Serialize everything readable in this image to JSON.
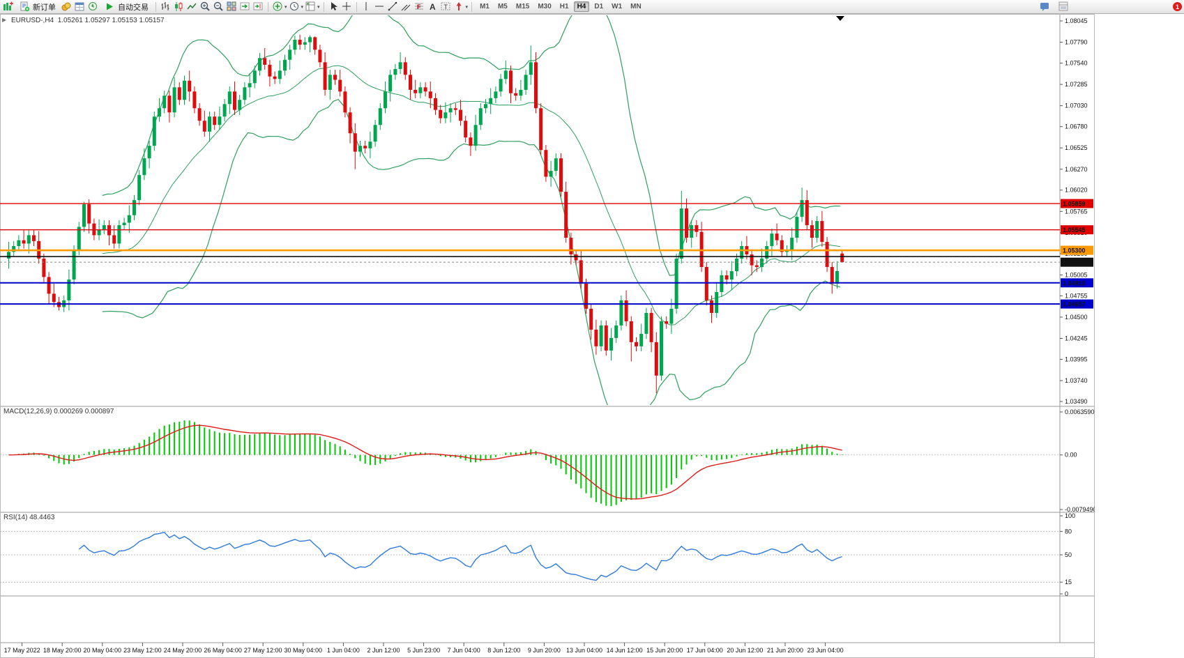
{
  "toolbar": {
    "new_order_label": "新订单",
    "autotrading_label": "自动交易",
    "timeframes": [
      "M1",
      "M5",
      "M15",
      "M30",
      "H1",
      "H4",
      "D1",
      "W1",
      "MN"
    ],
    "active_timeframe": "H4",
    "notification_count": "1"
  },
  "colors": {
    "candle_up": "#00A64F",
    "candle_down": "#DE0D0D",
    "bands": "#2E9E5E",
    "macd_hist": "#00C800",
    "macd_signal": "#E01818",
    "rsi_line": "#2E7BDE"
  },
  "chart_data": {
    "type": "candlestick",
    "symbol_header": "EURUSD-,H4",
    "ohlc_text": "1.05261 1.05297 1.05153 1.05157",
    "price_axis_range": {
      "top": 1.08045,
      "bottom": 1.0349
    },
    "price_axis_labels": [
      "1.08045",
      "1.07790",
      "1.07540",
      "1.07285",
      "1.07030",
      "1.06780",
      "1.06525",
      "1.06270",
      "1.06020",
      "1.05765",
      "1.05510",
      "1.05260",
      "1.05005",
      "1.04755",
      "1.04500",
      "1.04245",
      "1.03995",
      "1.03740",
      "1.03490"
    ],
    "time_labels": [
      "17 May 2022",
      "18 May 20:00",
      "20 May 04:00",
      "23 May 12:00",
      "24 May 20:00",
      "26 May 04:00",
      "27 May 12:00",
      "30 May 04:00",
      "1 Jun 04:00",
      "2 Jun 12:00",
      "5 Jun 23:00",
      "7 Jun 04:00",
      "8 Jun 12:00",
      "9 Jun 20:00",
      "13 Jun 04:00",
      "14 Jun 12:00",
      "15 Jun 20:00",
      "17 Jun 04:00",
      "20 Jun 12:00",
      "21 Jun 20:00",
      "23 Jun 04:00"
    ],
    "horizontal_lines": [
      {
        "price": 1.05859,
        "color": "#E00000",
        "width": 1.4,
        "label": "1.05859",
        "label_bg": "#E00000"
      },
      {
        "price": 1.05545,
        "color": "#E00000",
        "width": 1.4,
        "label": "1.05545",
        "label_bg": "#E00000"
      },
      {
        "price": 1.053,
        "color": "#FF9900",
        "width": 2.6,
        "label": "1.05300",
        "label_bg": "#FF9900"
      },
      {
        "price": 1.05225,
        "color": "#111111",
        "width": 1.6
      },
      {
        "price": 1.05157,
        "color": "#888888",
        "width": 1,
        "dash": "3,3",
        "label": "1.05157",
        "label_bg": "#111111"
      },
      {
        "price": 1.0491,
        "color": "#0000CC",
        "width": 2,
        "label": "1.04910",
        "label_bg": "#0000CC"
      },
      {
        "price": 1.04657,
        "color": "#0000CC",
        "width": 2,
        "label": "1.04657",
        "label_bg": "#0000CC"
      }
    ],
    "indicators": {
      "bollinger": {
        "period": 20,
        "deviation": 2
      },
      "macd": {
        "label": "MACD(12,26,9)",
        "values": "0.000269 0.000897",
        "scale_max": 0.006359,
        "scale_min": -0.007949,
        "axis_labels": [
          "0.0063590",
          "0.00",
          "-0.0079490"
        ]
      },
      "rsi": {
        "label": "RSI(14)",
        "value": "48.4463",
        "levels": [
          "100",
          "80",
          "50",
          "15",
          "0"
        ]
      }
    },
    "candles": [
      [
        1.052,
        1.054,
        1.0508,
        1.0528
      ],
      [
        1.0528,
        1.0541,
        1.0522,
        1.0535
      ],
      [
        1.0535,
        1.0548,
        1.0529,
        1.0542
      ],
      [
        1.0542,
        1.0554,
        1.0532,
        1.0538
      ],
      [
        1.0538,
        1.0554,
        1.0526,
        1.0548
      ],
      [
        1.0548,
        1.0554,
        1.0535,
        1.0541
      ],
      [
        1.0541,
        1.0553,
        1.0514,
        1.052
      ],
      [
        1.052,
        1.0526,
        1.0492,
        1.0498
      ],
      [
        1.0498,
        1.0504,
        1.0466,
        1.0478
      ],
      [
        1.0478,
        1.049,
        1.0462,
        1.0468
      ],
      [
        1.0468,
        1.0474,
        1.0458,
        1.0462
      ],
      [
        1.0462,
        1.0476,
        1.0456,
        1.047
      ],
      [
        1.047,
        1.0507,
        1.0458,
        1.0495
      ],
      [
        1.0495,
        1.0536,
        1.0489,
        1.053
      ],
      [
        1.053,
        1.0564,
        1.0524,
        1.0558
      ],
      [
        1.0558,
        1.0588,
        1.0552,
        1.0585
      ],
      [
        1.0585,
        1.0591,
        1.055,
        1.0562
      ],
      [
        1.0562,
        1.0568,
        1.0542,
        1.0548
      ],
      [
        1.0548,
        1.0567,
        1.0542,
        1.0555
      ],
      [
        1.0555,
        1.0566,
        1.0549,
        1.056
      ],
      [
        1.056,
        1.0566,
        1.0536,
        1.0548
      ],
      [
        1.0548,
        1.056,
        1.0532,
        1.0538
      ],
      [
        1.0538,
        1.0566,
        1.0532,
        1.056
      ],
      [
        1.056,
        1.0569,
        1.0554,
        1.0563
      ],
      [
        1.0563,
        1.0584,
        1.0551,
        1.0572
      ],
      [
        1.0572,
        1.0596,
        1.0566,
        1.059
      ],
      [
        1.059,
        1.0626,
        1.0584,
        1.062
      ],
      [
        1.062,
        1.0652,
        1.0614,
        1.064
      ],
      [
        1.064,
        1.0661,
        1.0628,
        1.0655
      ],
      [
        1.0655,
        1.0696,
        1.0649,
        1.069
      ],
      [
        1.069,
        1.0712,
        1.0684,
        1.07
      ],
      [
        1.07,
        1.0721,
        1.0694,
        1.0715
      ],
      [
        1.0715,
        1.0721,
        1.0683,
        1.0695
      ],
      [
        1.0695,
        1.0737,
        1.0689,
        1.0725
      ],
      [
        1.0725,
        1.0731,
        1.0704,
        1.071
      ],
      [
        1.071,
        1.0739,
        1.0704,
        1.0733
      ],
      [
        1.0733,
        1.0745,
        1.0708,
        1.072
      ],
      [
        1.072,
        1.0726,
        1.0694,
        1.07
      ],
      [
        1.07,
        1.0706,
        1.0679,
        1.0685
      ],
      [
        1.0685,
        1.0697,
        1.0666,
        1.0672
      ],
      [
        1.0672,
        1.0696,
        1.066,
        1.069
      ],
      [
        1.069,
        1.0696,
        1.0674,
        1.068
      ],
      [
        1.068,
        1.0702,
        1.0674,
        1.069
      ],
      [
        1.069,
        1.0711,
        1.0684,
        1.0705
      ],
      [
        1.0705,
        1.0726,
        1.0693,
        1.072
      ],
      [
        1.072,
        1.0732,
        1.0692,
        1.0698
      ],
      [
        1.0698,
        1.0716,
        1.0692,
        1.071
      ],
      [
        1.071,
        1.0731,
        1.0704,
        1.0725
      ],
      [
        1.0725,
        1.0742,
        1.0713,
        1.073
      ],
      [
        1.073,
        1.0751,
        1.0724,
        1.0745
      ],
      [
        1.0745,
        1.0766,
        1.0739,
        1.076
      ],
      [
        1.076,
        1.0772,
        1.0746,
        1.0752
      ],
      [
        1.0752,
        1.0758,
        1.0726,
        1.0738
      ],
      [
        1.0738,
        1.0744,
        1.0729,
        1.0735
      ],
      [
        1.0735,
        1.0757,
        1.0729,
        1.0745
      ],
      [
        1.0745,
        1.0764,
        1.0739,
        1.0758
      ],
      [
        1.0758,
        1.0776,
        1.0746,
        1.077
      ],
      [
        1.077,
        1.0787,
        1.0764,
        1.0782
      ],
      [
        1.0782,
        1.0788,
        1.077,
        1.0776
      ],
      [
        1.0776,
        1.0785,
        1.077,
        1.0779
      ],
      [
        1.0779,
        1.0787,
        1.0767,
        1.0785
      ],
      [
        1.0785,
        1.0786,
        1.0764,
        1.077
      ],
      [
        1.077,
        1.0776,
        1.0749,
        1.0755
      ],
      [
        1.0755,
        1.0767,
        1.0715,
        1.0722
      ],
      [
        1.0722,
        1.0746,
        1.071,
        1.074
      ],
      [
        1.074,
        1.0746,
        1.0728,
        1.0734
      ],
      [
        1.0734,
        1.0746,
        1.0714,
        1.072
      ],
      [
        1.072,
        1.0726,
        1.0689,
        1.0695
      ],
      [
        1.0695,
        1.0701,
        1.0658,
        1.067
      ],
      [
        1.067,
        1.0682,
        1.0627,
        1.0648
      ],
      [
        1.0648,
        1.0661,
        1.0642,
        1.0655
      ],
      [
        1.0655,
        1.0661,
        1.0646,
        1.0652
      ],
      [
        1.0652,
        1.0672,
        1.064,
        1.066
      ],
      [
        1.066,
        1.0686,
        1.0654,
        1.068
      ],
      [
        1.068,
        1.0706,
        1.0674,
        1.07
      ],
      [
        1.07,
        1.0732,
        1.0694,
        1.072
      ],
      [
        1.072,
        1.0746,
        1.0708,
        1.074
      ],
      [
        1.074,
        1.0753,
        1.0734,
        1.0747
      ],
      [
        1.0747,
        1.0767,
        1.0741,
        1.0755
      ],
      [
        1.0755,
        1.0761,
        1.0734,
        1.074
      ],
      [
        1.074,
        1.0746,
        1.071,
        1.0722
      ],
      [
        1.0722,
        1.0734,
        1.0712,
        1.0718
      ],
      [
        1.0718,
        1.0731,
        1.0712,
        1.0725
      ],
      [
        1.0725,
        1.0731,
        1.0714,
        1.072
      ],
      [
        1.072,
        1.0732,
        1.07,
        1.0712
      ],
      [
        1.0712,
        1.0718,
        1.0692,
        1.0698
      ],
      [
        1.0698,
        1.0704,
        1.0682,
        1.0688
      ],
      [
        1.0688,
        1.0707,
        1.0682,
        1.0695
      ],
      [
        1.0695,
        1.0706,
        1.0683,
        1.07
      ],
      [
        1.07,
        1.0706,
        1.0692,
        1.0698
      ],
      [
        1.0698,
        1.071,
        1.0679,
        1.0685
      ],
      [
        1.0685,
        1.0691,
        1.0659,
        1.0665
      ],
      [
        1.0665,
        1.0671,
        1.0643,
        1.0655
      ],
      [
        1.0655,
        1.0692,
        1.0649,
        1.068
      ],
      [
        1.068,
        1.0706,
        1.0674,
        1.07
      ],
      [
        1.07,
        1.0711,
        1.0694,
        1.0705
      ],
      [
        1.0705,
        1.0724,
        1.0693,
        1.0712
      ],
      [
        1.0712,
        1.0726,
        1.0706,
        1.072
      ],
      [
        1.072,
        1.0741,
        1.0714,
        1.0735
      ],
      [
        1.0735,
        1.0757,
        1.0729,
        1.0745
      ],
      [
        1.0745,
        1.0751,
        1.0706,
        1.0718
      ],
      [
        1.0718,
        1.0724,
        1.0709,
        1.0715
      ],
      [
        1.0715,
        1.0734,
        1.0709,
        1.0722
      ],
      [
        1.0722,
        1.0746,
        1.0716,
        1.074
      ],
      [
        1.074,
        1.0775,
        1.0728,
        1.0755
      ],
      [
        1.0755,
        1.0767,
        1.0694,
        1.07
      ],
      [
        1.07,
        1.0706,
        1.0644,
        1.065
      ],
      [
        1.065,
        1.0656,
        1.0612,
        1.0618
      ],
      [
        1.0618,
        1.0637,
        1.0606,
        1.0625
      ],
      [
        1.0625,
        1.0646,
        1.0619,
        1.064
      ],
      [
        1.064,
        1.0646,
        1.0594,
        1.06
      ],
      [
        1.06,
        1.0612,
        1.0539,
        1.0545
      ],
      [
        1.0545,
        1.0551,
        1.0513,
        1.0525
      ],
      [
        1.0525,
        1.0531,
        1.0512,
        1.0518
      ],
      [
        1.0518,
        1.053,
        1.0484,
        1.049
      ],
      [
        1.049,
        1.0496,
        1.0454,
        1.046
      ],
      [
        1.046,
        1.0466,
        1.0423,
        1.0435
      ],
      [
        1.0435,
        1.0447,
        1.0405,
        1.0415
      ],
      [
        1.0415,
        1.0446,
        1.0409,
        1.044
      ],
      [
        1.044,
        1.0446,
        1.0404,
        1.041
      ],
      [
        1.041,
        1.0437,
        1.0398,
        1.0425
      ],
      [
        1.0425,
        1.0446,
        1.0419,
        1.044
      ],
      [
        1.044,
        1.0476,
        1.0434,
        1.047
      ],
      [
        1.047,
        1.0482,
        1.0439,
        1.0445
      ],
      [
        1.0445,
        1.0451,
        1.0397,
        1.042
      ],
      [
        1.042,
        1.0426,
        1.0409,
        1.0415
      ],
      [
        1.0415,
        1.0442,
        1.0409,
        1.043
      ],
      [
        1.043,
        1.0461,
        1.0424,
        1.0455
      ],
      [
        1.0455,
        1.0461,
        1.0408,
        1.042
      ],
      [
        1.042,
        1.0432,
        1.0359,
        1.038
      ],
      [
        1.038,
        1.0451,
        1.0374,
        1.0445
      ],
      [
        1.0445,
        1.0451,
        1.0436,
        1.0442
      ],
      [
        1.0442,
        1.0472,
        1.043,
        1.046
      ],
      [
        1.046,
        1.0526,
        1.0454,
        1.052
      ],
      [
        1.052,
        1.0601,
        1.0514,
        1.058
      ],
      [
        1.058,
        1.0592,
        1.0539,
        1.0545
      ],
      [
        1.0545,
        1.0566,
        1.0533,
        1.056
      ],
      [
        1.056,
        1.0566,
        1.0546,
        1.0552
      ],
      [
        1.0552,
        1.0564,
        1.0504,
        1.051
      ],
      [
        1.051,
        1.0516,
        1.0464,
        1.047
      ],
      [
        1.047,
        1.0476,
        1.0443,
        1.0455
      ],
      [
        1.0455,
        1.0492,
        1.0449,
        1.048
      ],
      [
        1.048,
        1.0506,
        1.0474,
        1.05
      ],
      [
        1.05,
        1.0506,
        1.0489,
        1.0495
      ],
      [
        1.0495,
        1.0517,
        1.0483,
        1.0505
      ],
      [
        1.0505,
        1.0526,
        1.0499,
        1.052
      ],
      [
        1.052,
        1.0541,
        1.0514,
        1.0535
      ],
      [
        1.0535,
        1.0547,
        1.0519,
        1.0525
      ],
      [
        1.0525,
        1.0531,
        1.05,
        1.0512
      ],
      [
        1.0512,
        1.0518,
        1.0504,
        1.051
      ],
      [
        1.051,
        1.0532,
        1.0504,
        1.052
      ],
      [
        1.052,
        1.0541,
        1.0514,
        1.0535
      ],
      [
        1.0535,
        1.0556,
        1.0523,
        1.055
      ],
      [
        1.055,
        1.0562,
        1.0536,
        1.0542
      ],
      [
        1.0542,
        1.0548,
        1.0522,
        1.0528
      ],
      [
        1.0528,
        1.0536,
        1.0522,
        1.053
      ],
      [
        1.053,
        1.0557,
        1.0518,
        1.0545
      ],
      [
        1.0545,
        1.0576,
        1.0539,
        1.057
      ],
      [
        1.057,
        1.0605,
        1.0564,
        1.059
      ],
      [
        1.059,
        1.0602,
        1.0554,
        1.056
      ],
      [
        1.056,
        1.0566,
        1.0533,
        1.0545
      ],
      [
        1.0545,
        1.0571,
        1.0539,
        1.0565
      ],
      [
        1.0565,
        1.0577,
        1.0534,
        1.054
      ],
      [
        1.054,
        1.0546,
        1.0504,
        1.051
      ],
      [
        1.051,
        1.0516,
        1.0478,
        1.049
      ],
      [
        1.049,
        1.0517,
        1.0484,
        1.0505
      ],
      [
        1.05261,
        1.05297,
        1.05153,
        1.05157
      ]
    ]
  }
}
